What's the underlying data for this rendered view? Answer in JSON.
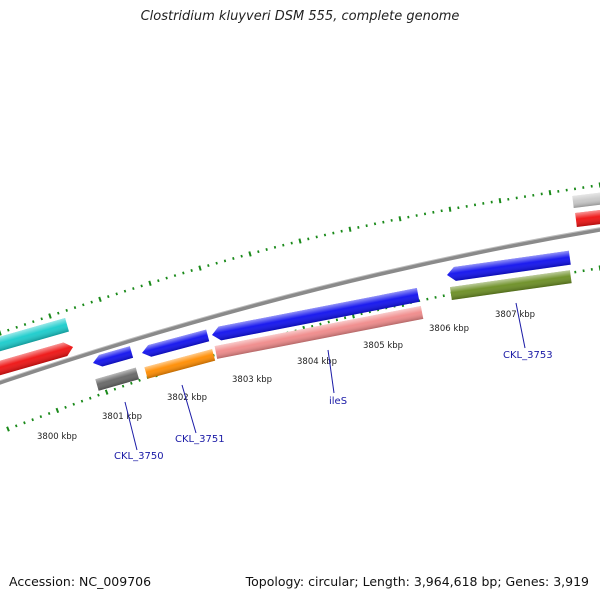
{
  "title": "Clostridium kluyveri DSM 555, complete genome",
  "footer": {
    "accession": "Accession: NC_009706",
    "summary": "Topology: circular; Length: 3,964,618 bp; Genes: 3,919"
  },
  "colors": {
    "forward_strand": "#1010ee",
    "backbone": "#888888",
    "ticks": "#1a8a1a",
    "gene_label": "#1a1aa6"
  },
  "ticks": [
    {
      "label": "3800 kbp"
    },
    {
      "label": "3801 kbp"
    },
    {
      "label": "3802 kbp"
    },
    {
      "label": "3803 kbp"
    },
    {
      "label": "3804 kbp"
    },
    {
      "label": "3805 kbp"
    },
    {
      "label": "3806 kbp"
    },
    {
      "label": "3807 kbp"
    }
  ],
  "gene_labels": [
    {
      "name": "CKL_3750"
    },
    {
      "name": "CKL_3751"
    },
    {
      "name": "ileS"
    },
    {
      "name": "CKL_3753"
    }
  ],
  "features": [
    {
      "name": "cyan-feature",
      "color": "#19cccc"
    },
    {
      "name": "red-feature-left",
      "color": "#ee1111"
    },
    {
      "name": "gene-blue-1",
      "color": "#1010ee"
    },
    {
      "name": "gene-gray",
      "color": "#666666"
    },
    {
      "name": "gene-blue-2",
      "color": "#1010ee"
    },
    {
      "name": "gene-orange",
      "color": "#ff8c00"
    },
    {
      "name": "gene-ileS",
      "color": "#1010ee"
    },
    {
      "name": "gene-pink",
      "color": "#f08a8a"
    },
    {
      "name": "gene-blue-3753",
      "color": "#1010ee"
    },
    {
      "name": "gene-olive",
      "color": "#6b8e23"
    },
    {
      "name": "gene-lightgray-right",
      "color": "#c8c8c8"
    },
    {
      "name": "gene-red-right",
      "color": "#ee1111"
    }
  ]
}
